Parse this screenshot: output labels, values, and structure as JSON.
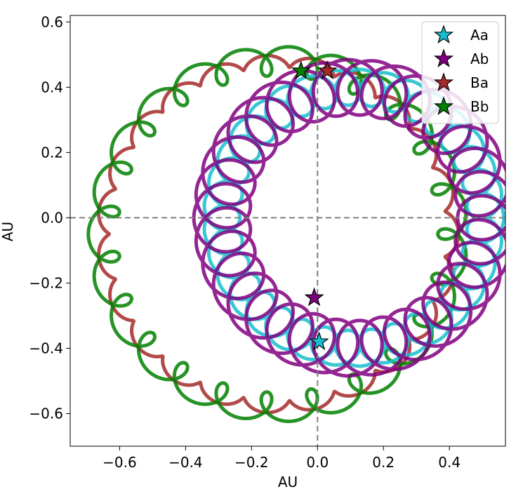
{
  "chart_data": {
    "type": "line",
    "title": "",
    "xlabel": "AU",
    "ylabel": "AU",
    "xlim": [
      -0.75,
      0.57
    ],
    "ylim": [
      -0.7,
      0.62
    ],
    "xticks": [
      -0.6,
      -0.4,
      -0.2,
      0.0,
      0.2,
      0.4
    ],
    "yticks": [
      -0.6,
      -0.4,
      -0.2,
      0.0,
      0.2,
      0.4,
      0.6
    ],
    "xtick_labels": [
      "−0.6",
      "−0.4",
      "−0.2",
      "0.0",
      "0.2",
      "0.4"
    ],
    "ytick_labels": [
      "−0.6",
      "−0.4",
      "−0.2",
      "0.0",
      "0.2",
      "0.4",
      "0.6"
    ],
    "reference_lines": {
      "x": 0.0,
      "y": 0.0,
      "style": "dashed",
      "color": "#808080"
    },
    "grid": false,
    "legend_position": "top-right",
    "description": "Four-body orbits: inner binary (Aa, Ab) epicyclic loops around a ring of radius ~0.4 AU centered near (0.11, 0); outer binary (Ba, Bb) loops around a ring of radius ~0.53 AU centered near (-0.12, -0.05). Star markers show current positions.",
    "series": [
      {
        "name": "Aa",
        "color": "#17becf",
        "center": [
          0.11,
          0.0
        ],
        "ring_radius": 0.4,
        "ring_phase_deg": 220,
        "loop_radius": 0.055,
        "loop_count": 34,
        "loop_phase": 0.0,
        "current_position": [
          0.005,
          -0.38
        ]
      },
      {
        "name": "Ab",
        "color": "#800080",
        "center": [
          0.11,
          0.0
        ],
        "ring_radius": 0.4,
        "ring_phase_deg": 220,
        "loop_radius": 0.085,
        "loop_count": 34,
        "loop_phase": 3.14159,
        "current_position": [
          -0.01,
          -0.245
        ]
      },
      {
        "name": "Ba",
        "color": "#a52a2a",
        "center": [
          -0.12,
          -0.05
        ],
        "ring_radius": 0.53,
        "ring_phase_deg": 75,
        "loop_radius": 0.018,
        "loop_count": 24,
        "loop_phase": 0.0,
        "current_position": [
          0.03,
          0.45
        ]
      },
      {
        "name": "Bb",
        "color": "#008000",
        "center": [
          -0.12,
          -0.05
        ],
        "ring_radius": 0.53,
        "ring_phase_deg": 75,
        "loop_radius": 0.045,
        "loop_count": 24,
        "loop_phase": 3.14159,
        "current_position": [
          -0.05,
          0.45
        ]
      }
    ]
  }
}
